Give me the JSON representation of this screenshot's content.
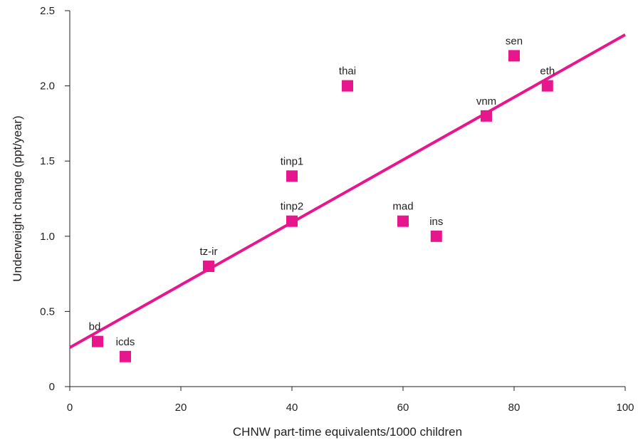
{
  "chart_data": {
    "type": "scatter",
    "title": "",
    "xlabel": "CHNW part-time equivalents/1000 children",
    "ylabel": "Underweight change (ppt/year)",
    "xlim": [
      0,
      100
    ],
    "ylim": [
      0,
      2.5
    ],
    "xticks": [
      "0",
      "20",
      "40",
      "60",
      "80",
      "100"
    ],
    "yticks": [
      "0",
      "0.5",
      "1.0",
      "1.5",
      "2.0",
      "2.5"
    ],
    "grid": false,
    "marker_color": "#e8168c",
    "line_color": "#e8168c",
    "points": [
      {
        "label": "bd",
        "x": 5,
        "y": 0.3
      },
      {
        "label": "icds",
        "x": 10,
        "y": 0.2
      },
      {
        "label": "tz-ir",
        "x": 25,
        "y": 0.8
      },
      {
        "label": "tinp2",
        "x": 40,
        "y": 1.1
      },
      {
        "label": "tinp1",
        "x": 40,
        "y": 1.4
      },
      {
        "label": "thai",
        "x": 50,
        "y": 2.0
      },
      {
        "label": "mad",
        "x": 60,
        "y": 1.1
      },
      {
        "label": "ins",
        "x": 66,
        "y": 1.0
      },
      {
        "label": "vnm",
        "x": 75,
        "y": 1.8
      },
      {
        "label": "sen",
        "x": 80,
        "y": 2.2
      },
      {
        "label": "eth",
        "x": 86,
        "y": 2.0
      }
    ],
    "trendline": {
      "x": [
        0,
        100
      ],
      "y": [
        0.26,
        2.34
      ]
    }
  }
}
